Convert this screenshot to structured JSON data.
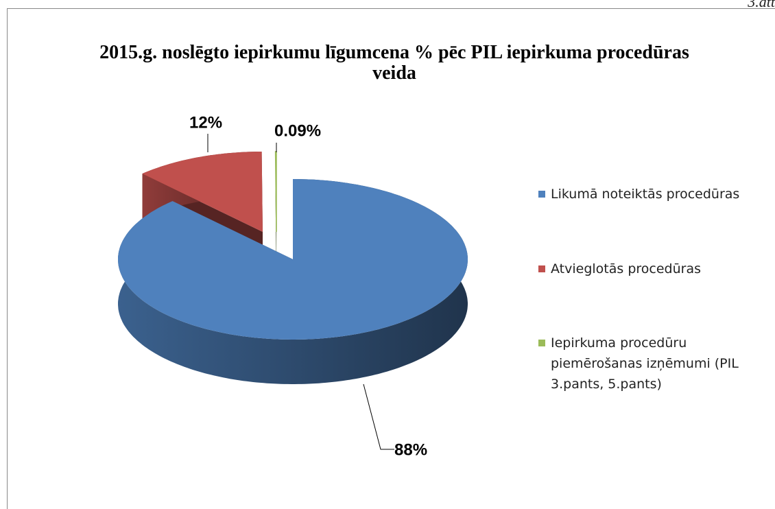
{
  "page_label": "3.att",
  "chart_data": {
    "type": "pie",
    "title": "2015.g. noslēgto iepirkumu līgumcena % pēc PIL iepirkuma procedūras veida",
    "categories": [
      "Likumā noteiktās procedūras",
      "Atvieglotās procedūras",
      "Iepirkuma procedūru piemērošanas izņēmumi (PIL 3.pants, 5.pants)"
    ],
    "values": [
      88,
      12,
      0.09
    ],
    "value_labels": [
      "88%",
      "12%",
      "0.09%"
    ],
    "colors": [
      "#4f81bd",
      "#c0504d",
      "#9bbb59"
    ],
    "legend": "right"
  }
}
